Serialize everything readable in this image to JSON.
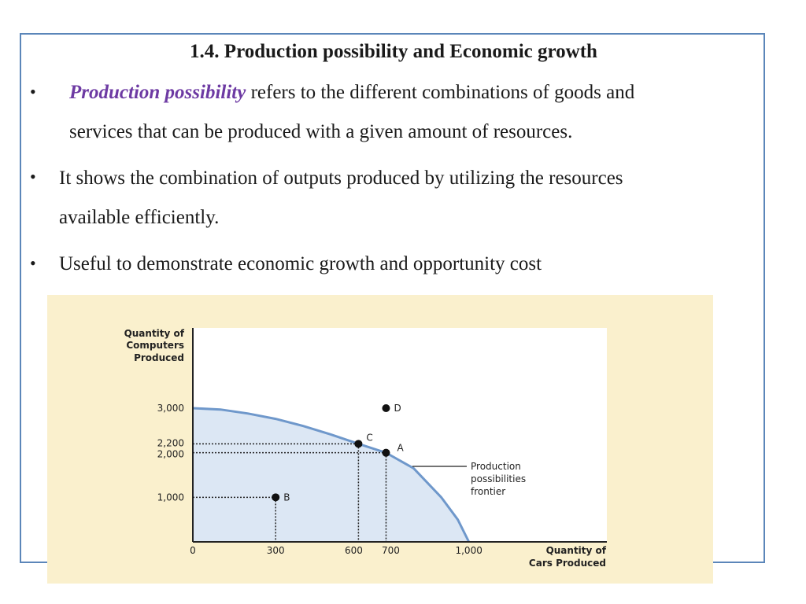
{
  "slide": {
    "title": "1.4. Production possibility and Economic growth",
    "bullets": [
      {
        "em": "Production possibility",
        "line1": " refers to the different combinations of goods and",
        "line2": "services that can be produced with a given amount of resources."
      },
      {
        "line1": "It shows  the combination of outputs produced by utilizing the resources",
        "line2": "available efficiently."
      },
      {
        "line1": "Useful to demonstrate economic growth and opportunity cost"
      }
    ],
    "bullet_symbol": "•"
  },
  "chart_data": {
    "type": "scatter",
    "ylabel_lines": [
      "Quantity of",
      "Computers",
      "Produced"
    ],
    "xlabel_lines": [
      "Quantity of",
      "Cars Produced"
    ],
    "x_ticks": [
      "0",
      "300",
      "600",
      "700",
      "1,000"
    ],
    "y_ticks": [
      "1,000",
      "2,000",
      "2,200",
      "3,000"
    ],
    "xlim": [
      0,
      1500
    ],
    "ylim": [
      0,
      4800
    ],
    "frontier": {
      "label_lines": [
        "Production",
        "possibilities",
        "frontier"
      ],
      "points": [
        [
          0,
          3000
        ],
        [
          100,
          2970
        ],
        [
          200,
          2880
        ],
        [
          300,
          2760
        ],
        [
          400,
          2600
        ],
        [
          500,
          2410
        ],
        [
          600,
          2200
        ],
        [
          700,
          2000
        ],
        [
          800,
          1650
        ],
        [
          900,
          1000
        ],
        [
          960,
          500
        ],
        [
          1000,
          0
        ]
      ]
    },
    "points": [
      {
        "label": "A",
        "x": 700,
        "y": 2000
      },
      {
        "label": "B",
        "x": 300,
        "y": 1000
      },
      {
        "label": "C",
        "x": 600,
        "y": 2200
      },
      {
        "label": "D",
        "x": 700,
        "y": 3000
      }
    ],
    "colors": {
      "fill": "#dce7f4",
      "curve": "#6f98cb",
      "background": "#faf0cd",
      "plot": "#ffffff"
    }
  }
}
